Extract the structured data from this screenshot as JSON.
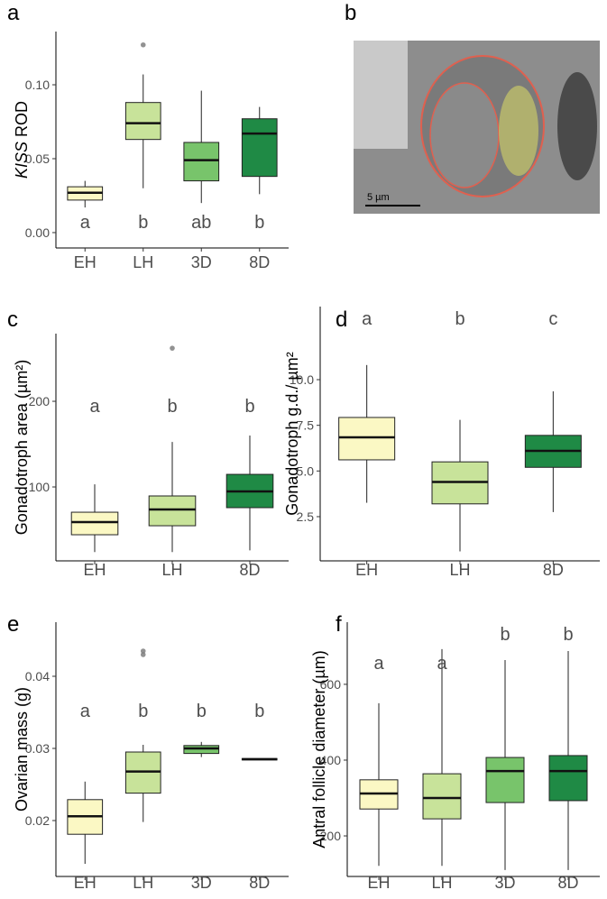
{
  "chart_data": [
    {
      "type": "box",
      "panel": "a",
      "y_label_italic": "KISS",
      "y_label": "ROD",
      "categories": [
        "EH",
        "LH",
        "3D",
        "8D"
      ],
      "ylim": [
        -0.0104,
        0.136
      ],
      "yticks": [
        {
          "value": 0,
          "label": "0.00"
        },
        {
          "value": 0.05,
          "label": "0.05"
        },
        {
          "value": 0.1,
          "label": "0.10"
        }
      ],
      "letters": [
        "a",
        "b",
        "ab",
        "b"
      ],
      "boxes": [
        {
          "min": 0.017,
          "q1": 0.022,
          "median": 0.027,
          "q3": 0.031,
          "max": 0.035,
          "color": "#fbf8c4",
          "outliers": []
        },
        {
          "min": 0.03,
          "q1": 0.063,
          "median": 0.074,
          "q3": 0.088,
          "max": 0.107,
          "color": "#c8e39a",
          "outliers": [
            0.127
          ]
        },
        {
          "min": 0.02,
          "q1": 0.035,
          "median": 0.049,
          "q3": 0.061,
          "max": 0.096,
          "color": "#78c46b",
          "outliers": []
        },
        {
          "min": 0.026,
          "q1": 0.038,
          "median": 0.067,
          "q3": 0.077,
          "max": 0.085,
          "color": "#1f8a45",
          "outliers": []
        }
      ]
    },
    {
      "type": "box",
      "panel": "c",
      "y_label": "Gonadotroph area (µm²)",
      "categories": [
        "EH",
        "LH",
        "8D"
      ],
      "ylim": [
        13.7,
        279
      ],
      "yticks": [
        100,
        200
      ],
      "letters": [
        "a",
        "b",
        "b"
      ],
      "boxes": [
        {
          "min": 24,
          "q1": 44.2,
          "median": 59,
          "q3": 70.5,
          "max": 103,
          "color": "#fbf8c4",
          "outliers": []
        },
        {
          "min": 24,
          "q1": 54.7,
          "median": 73.7,
          "q3": 89.5,
          "max": 152.6,
          "color": "#c8e39a",
          "outliers": [
            262
          ]
        },
        {
          "min": 26,
          "q1": 75.8,
          "median": 94.7,
          "q3": 114.7,
          "max": 160,
          "color": "#1f8a45",
          "outliers": []
        }
      ]
    },
    {
      "type": "box",
      "panel": "d",
      "y_label": "Gonadotroph g.d./ µm²",
      "categories": [
        "EH",
        "LH",
        "8D"
      ],
      "ylim": [
        0.08,
        14
      ],
      "yticks": [
        2.5,
        {
          "value": 5,
          "label": "5.0"
        },
        7.5,
        {
          "value": 10,
          "label": "10.0"
        }
      ],
      "letters": [
        "a",
        "b",
        "c"
      ],
      "boxes": [
        {
          "min": 3.26,
          "q1": 5.61,
          "median": 6.84,
          "q3": 7.93,
          "max": 10.8,
          "color": "#fbf8c4",
          "outliers": []
        },
        {
          "min": 0.6,
          "q1": 3.2,
          "median": 4.4,
          "q3": 5.5,
          "max": 7.8,
          "color": "#c8e39a",
          "outliers": []
        },
        {
          "min": 2.75,
          "q1": 5.2,
          "median": 6.1,
          "q3": 6.95,
          "max": 9.36,
          "color": "#1f8a45",
          "outliers": []
        }
      ]
    },
    {
      "type": "box",
      "panel": "e",
      "y_label": "Ovarian mass (g)",
      "categories": [
        "EH",
        "LH",
        "3D",
        "8D"
      ],
      "ylim": [
        0.01225,
        0.0475
      ],
      "yticks": [
        0.02,
        0.03,
        0.04
      ],
      "letters": [
        "a",
        "b",
        "b",
        "b"
      ],
      "boxes": [
        {
          "min": 0.014,
          "q1": 0.0181,
          "median": 0.0206,
          "q3": 0.0229,
          "max": 0.0254,
          "color": "#fbf8c4",
          "outliers": []
        },
        {
          "min": 0.0198,
          "q1": 0.0238,
          "median": 0.0268,
          "q3": 0.0295,
          "max": 0.0305,
          "color": "#c8e39a",
          "outliers": [
            0.043,
            0.0435
          ]
        },
        {
          "min": 0.0288,
          "q1": 0.0293,
          "median": 0.03,
          "q3": 0.0304,
          "max": 0.0309,
          "color": "#78c46b",
          "outliers": []
        },
        {
          "min": 0.0284,
          "q1": 0.0284,
          "median": 0.0285,
          "q3": 0.0286,
          "max": 0.0286,
          "color": "#1f8a45",
          "outliers": []
        }
      ]
    },
    {
      "type": "box",
      "panel": "f",
      "y_label": "Antral follicle diameter (µm)",
      "categories": [
        "EH",
        "LH",
        "3D",
        "8D"
      ],
      "ylim": [
        93,
        764
      ],
      "yticks": [
        200,
        400,
        600
      ],
      "letters": [
        "a",
        "a",
        "b",
        "b"
      ],
      "boxes": [
        {
          "min": 121,
          "q1": 271,
          "median": 312,
          "q3": 348,
          "max": 550,
          "color": "#fbf8c4",
          "outliers": []
        },
        {
          "min": 121,
          "q1": 245,
          "median": 300,
          "q3": 364,
          "max": 693,
          "color": "#c8e39a",
          "outliers": []
        },
        {
          "min": 110,
          "q1": 288,
          "median": 371,
          "q3": 407,
          "max": 664,
          "color": "#78c46b",
          "outliers": []
        },
        {
          "min": 110,
          "q1": 293,
          "median": 371,
          "q3": 412,
          "max": 688,
          "color": "#1f8a45",
          "outliers": []
        }
      ]
    }
  ],
  "image_panel": {
    "panel": "b",
    "scale_label": "5 µm"
  }
}
